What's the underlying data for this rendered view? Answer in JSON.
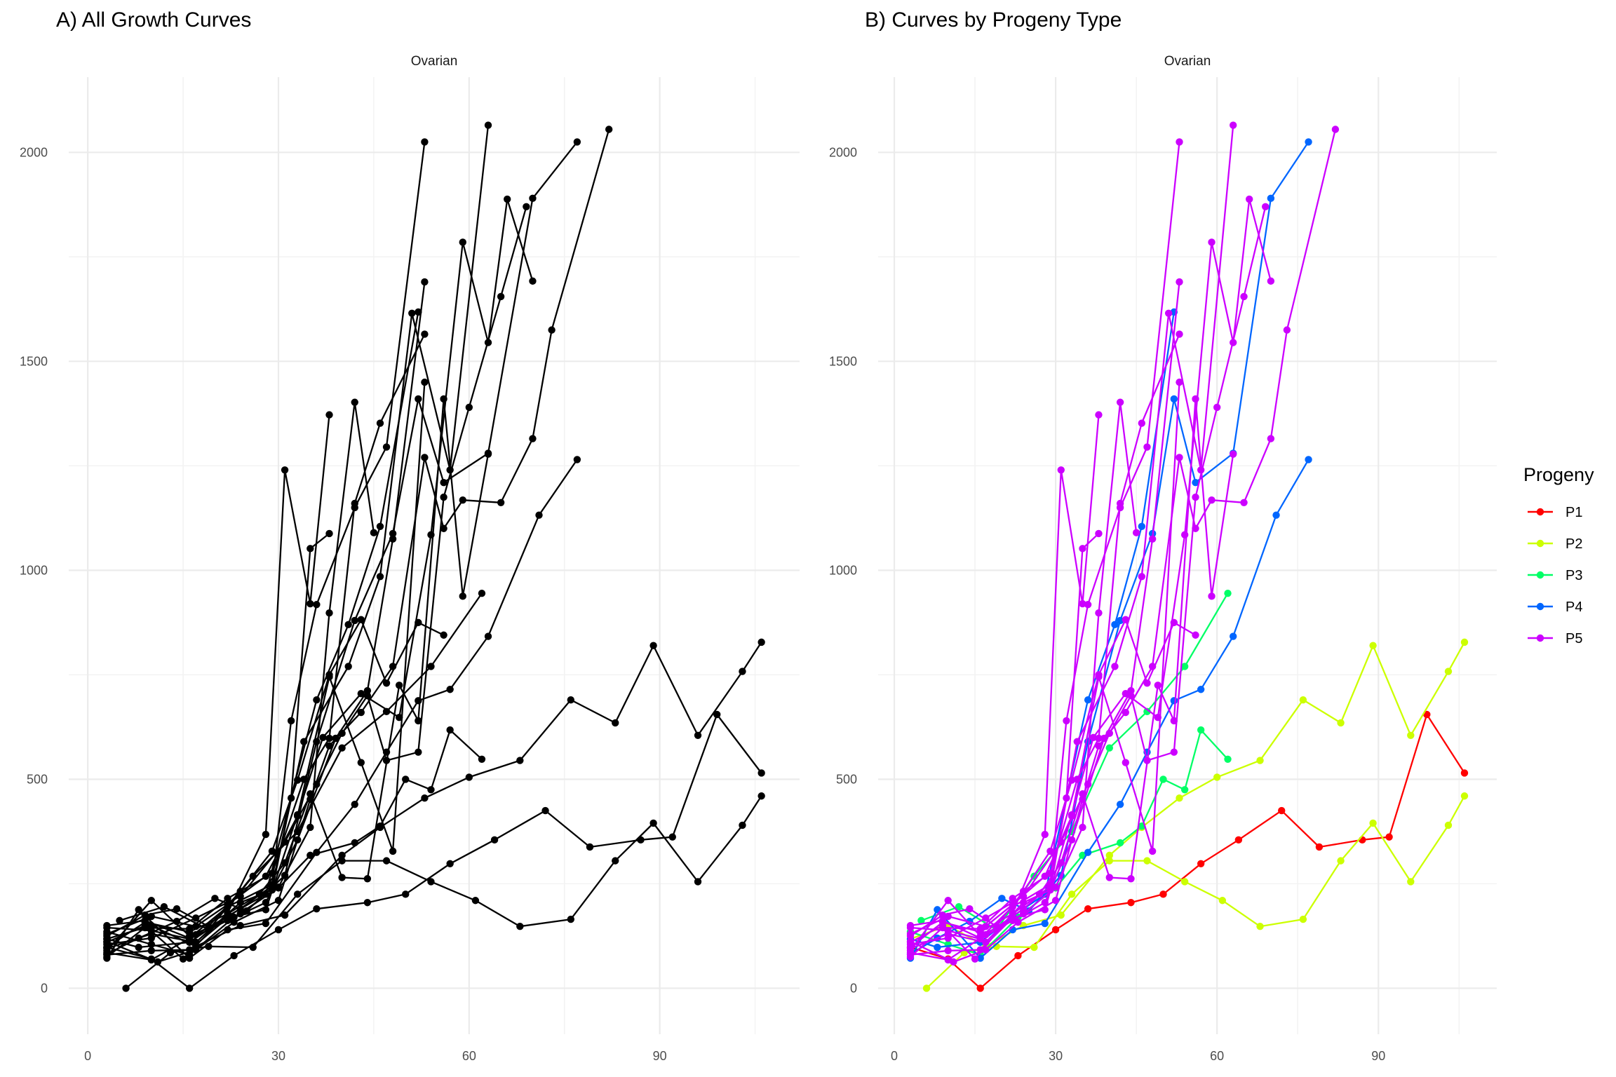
{
  "chart_data": [
    {
      "panel_id": "A",
      "type": "line",
      "title": "A) All Growth Curves",
      "facet": "Ovarian",
      "xlabel": "",
      "ylabel": "",
      "xlim": [
        -3,
        112
      ],
      "ylim": [
        -110,
        2180
      ],
      "x_ticks": [
        0,
        30,
        60,
        90
      ],
      "y_ticks": [
        0,
        500,
        1000,
        1500,
        2000
      ],
      "grid": true,
      "legend": "none",
      "color_by_series": false,
      "series": [
        {
          "progeny": "P1",
          "x": [
            3,
            10,
            16,
            23,
            30,
            36,
            44,
            50,
            57,
            64,
            72,
            79,
            87,
            92,
            99,
            106
          ],
          "y": [
            98,
            70,
            0,
            78,
            140,
            190,
            205,
            225,
            298,
            355,
            425,
            338,
            355,
            362,
            655,
            515
          ]
        },
        {
          "progeny": "P2",
          "x": [
            6,
            13,
            19,
            26,
            33,
            40,
            47,
            54,
            61,
            68,
            76,
            83,
            89,
            96,
            103,
            106
          ],
          "y": [
            0,
            85,
            100,
            98,
            225,
            305,
            305,
            255,
            210,
            148,
            165,
            305,
            395,
            255,
            390,
            460
          ]
        },
        {
          "progeny": "P2",
          "x": [
            3,
            10,
            17,
            24,
            31,
            40,
            46,
            53,
            60,
            68,
            76,
            83,
            89,
            96,
            103,
            106
          ],
          "y": [
            118,
            150,
            100,
            150,
            175,
            318,
            385,
            455,
            505,
            545,
            690,
            635,
            820,
            605,
            758,
            828
          ]
        },
        {
          "progeny": "P3",
          "x": [
            5,
            12,
            19,
            26,
            33,
            40,
            47,
            54,
            62
          ],
          "y": [
            162,
            195,
            140,
            268,
            375,
            575,
            662,
            770,
            945
          ]
        },
        {
          "progeny": "P3",
          "x": [
            3,
            10,
            16,
            23,
            30,
            35,
            42,
            46,
            50,
            54,
            57,
            62
          ],
          "y": [
            135,
            105,
            80,
            170,
            240,
            318,
            348,
            388,
            500,
            475,
            618,
            548
          ]
        },
        {
          "progeny": "P4",
          "x": [
            3,
            8,
            14,
            20,
            25,
            31,
            36,
            42,
            48,
            52,
            56,
            63,
            70,
            77
          ],
          "y": [
            82,
            120,
            160,
            215,
            185,
            270,
            590,
            880,
            1088,
            1410,
            1210,
            1280,
            1890,
            2025
          ]
        },
        {
          "progeny": "P4",
          "x": [
            3,
            8,
            16,
            22,
            28,
            36,
            42,
            47,
            52,
            57,
            63,
            71,
            77
          ],
          "y": [
            72,
            188,
            72,
            140,
            155,
            325,
            440,
            565,
            688,
            715,
            842,
            1132,
            1265
          ]
        },
        {
          "progeny": "P4",
          "x": [
            3,
            8,
            16,
            22,
            28,
            36,
            41,
            46,
            52
          ],
          "y": [
            118,
            98,
            110,
            172,
            225,
            690,
            870,
            1105,
            1618
          ]
        },
        {
          "progeny": "P5",
          "x": [
            3,
            9,
            16,
            22,
            29,
            32,
            36,
            42,
            47,
            53
          ],
          "y": [
            150,
            162,
            120,
            195,
            248,
            640,
            918,
            1150,
            1295,
            2025
          ]
        },
        {
          "progeny": "P5",
          "x": [
            3,
            10,
            17,
            24,
            29,
            34,
            41,
            46,
            51,
            57,
            63
          ],
          "y": [
            85,
            68,
            128,
            190,
            245,
            590,
            770,
            985,
            1615,
            1240,
            2065
          ]
        },
        {
          "progeny": "P5",
          "x": [
            3,
            9,
            15,
            22,
            28,
            31,
            35,
            38
          ],
          "y": [
            110,
            150,
            70,
            180,
            368,
            1240,
            920,
            1372
          ]
        },
        {
          "progeny": "P5",
          "x": [
            3,
            10,
            17,
            24,
            29,
            32,
            35,
            38
          ],
          "y": [
            95,
            130,
            110,
            205,
            235,
            455,
            1052,
            1088
          ]
        },
        {
          "progeny": "P5",
          "x": [
            3,
            10,
            16,
            24,
            30,
            35,
            38,
            42,
            45
          ],
          "y": [
            90,
            210,
            125,
            178,
            242,
            385,
            898,
            1402,
            1090
          ]
        },
        {
          "progeny": "P5",
          "x": [
            3,
            9,
            16,
            22,
            29,
            34,
            38,
            42,
            46,
            53
          ],
          "y": [
            75,
            145,
            142,
            215,
            275,
            500,
            598,
            1160,
            1352,
            1565
          ]
        },
        {
          "progeny": "P5",
          "x": [
            3,
            10,
            16,
            22,
            28,
            33,
            37,
            43,
            49,
            54,
            59,
            63,
            66,
            70
          ],
          "y": [
            80,
            90,
            92,
            168,
            188,
            415,
            600,
            705,
            648,
            1085,
            1785,
            1545,
            1888,
            1692
          ]
        },
        {
          "progeny": "P5",
          "x": [
            3,
            11,
            17,
            23,
            30,
            35,
            38,
            43,
            48,
            53,
            56,
            59,
            65,
            70,
            73,
            82
          ],
          "y": [
            112,
            63,
            92,
            158,
            210,
            452,
            580,
            660,
            770,
            1270,
            1100,
            1168,
            1162,
            1315,
            1575,
            2055
          ]
        },
        {
          "progeny": "P5",
          "x": [
            3,
            10,
            17,
            24,
            31,
            36,
            40,
            44,
            47,
            52,
            56,
            60,
            65,
            69
          ],
          "y": [
            105,
            120,
            168,
            220,
            350,
            488,
            610,
            700,
            545,
            565,
            1175,
            1390,
            1655,
            1870
          ]
        },
        {
          "progeny": "P5",
          "x": [
            3,
            9,
            16,
            22,
            27,
            31,
            35,
            40,
            44,
            49,
            52,
            56,
            59,
            63
          ],
          "y": [
            98,
            158,
            135,
            178,
            225,
            300,
            465,
            265,
            262,
            725,
            640,
            1410,
            938,
            1278
          ]
        },
        {
          "progeny": "P5",
          "x": [
            3,
            9,
            14,
            19,
            24,
            29,
            33,
            38,
            43,
            47,
            52,
            56
          ],
          "y": [
            125,
            175,
            190,
            148,
            232,
            328,
            498,
            750,
            882,
            730,
            875,
            845
          ]
        },
        {
          "progeny": "P5",
          "x": [
            3,
            10,
            16,
            22,
            28,
            33,
            39,
            44,
            48,
            53
          ],
          "y": [
            145,
            138,
            118,
            162,
            205,
            355,
            598,
            712,
            1075,
            1690
          ]
        },
        {
          "progeny": "P5",
          "x": [
            3,
            10,
            17,
            22,
            28,
            33,
            38,
            43,
            48,
            53
          ],
          "y": [
            130,
            172,
            148,
            200,
            268,
            412,
            745,
            540,
            328,
            1450
          ]
        }
      ]
    },
    {
      "panel_id": "B",
      "type": "line",
      "title": "B) Curves by Progeny Type",
      "facet": "Ovarian",
      "xlabel": "",
      "ylabel": "",
      "xlim": [
        -3,
        112
      ],
      "ylim": [
        -110,
        2180
      ],
      "x_ticks": [
        0,
        30,
        60,
        90
      ],
      "y_ticks": [
        0,
        500,
        1000,
        1500,
        2000
      ],
      "grid": true,
      "legend": "right",
      "legend_title": "Progeny",
      "color_by_series": true,
      "groups": [
        {
          "name": "P1",
          "color": "#ff0000"
        },
        {
          "name": "P2",
          "color": "#ccff00"
        },
        {
          "name": "P3",
          "color": "#00ff66"
        },
        {
          "name": "P4",
          "color": "#0066ff"
        },
        {
          "name": "P5",
          "color": "#cc00ff"
        }
      ]
    }
  ],
  "colors": {
    "line_panel_a": "#000000",
    "grid": "#ebebeb",
    "tick_text": "#4d4d4d"
  }
}
